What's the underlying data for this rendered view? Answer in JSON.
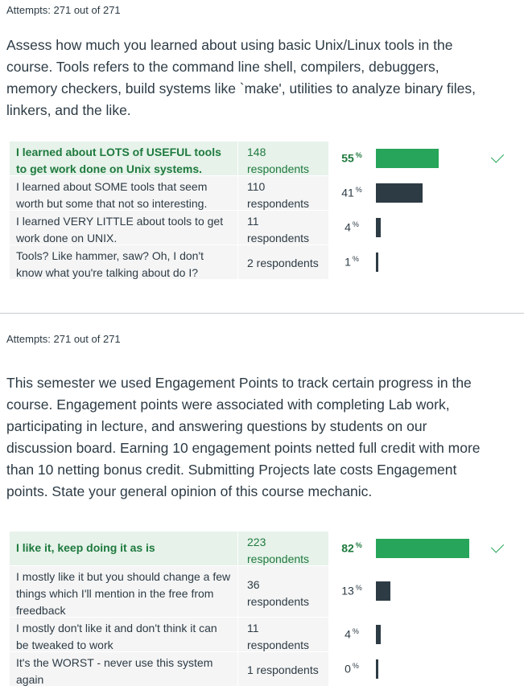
{
  "questions": [
    {
      "attempts": "Attempts: 271 out of 271",
      "text": "Assess how much you learned about using basic Unix/Linux tools in the course. Tools refers to the command line shell, compilers, debuggers, memory checkers, build systems like `make', utilities to analyze binary files, linkers, and the like.",
      "answers": [
        {
          "text": "I learned about LOTS of USEFUL tools to get work done on Unix systems.",
          "respondents": "148 respondents",
          "percent": "55",
          "percent_value": 55,
          "correct": true
        },
        {
          "text": "I learned about SOME tools that seem worth but some that not so interesting.",
          "respondents": "110 respondents",
          "percent": "41",
          "percent_value": 41,
          "correct": false
        },
        {
          "text": "I learned VERY LITTLE about tools to get work done on UNIX.",
          "respondents": "11 respondents",
          "percent": "4",
          "percent_value": 4,
          "correct": false
        },
        {
          "text": "Tools? Like hammer, saw? Oh, I don't know what you're talking about do I?",
          "respondents": "2 respondents",
          "percent": "1",
          "percent_value": 1,
          "correct": false
        }
      ]
    },
    {
      "attempts": "Attempts: 271 out of 271",
      "text": "This semester we used Engagement Points to track certain progress in the course. Engagement points were associated with completing Lab work, participating in lecture, and answering questions by students on our discussion board.  Earning 10 engagement points netted full credit with more than 10 netting bonus credit. Submitting Projects late costs Engagement points.  State your general opinion of this course mechanic.",
      "answers": [
        {
          "text": "I like it, keep doing it as is",
          "respondents": "223 respondents",
          "percent": "82",
          "percent_value": 82,
          "correct": true
        },
        {
          "text": "I mostly like it but you should change a few things which I'll mention in the free from freedback",
          "respondents": "36 respondents",
          "percent": "13",
          "percent_value": 13,
          "correct": false
        },
        {
          "text": "I mostly don't like it and don't think it can be tweaked to work",
          "respondents": "11 respondents",
          "percent": "4",
          "percent_value": 4,
          "correct": false
        },
        {
          "text": "It's the WORST - never use this system again",
          "respondents": "1 respondents",
          "percent": "0",
          "percent_value": 0,
          "correct": false
        }
      ]
    }
  ],
  "percent_symbol": "%",
  "colors": {
    "correct": "#27a55a",
    "bar": "#2d3b45",
    "correct_bg": "#e6f2ea"
  }
}
